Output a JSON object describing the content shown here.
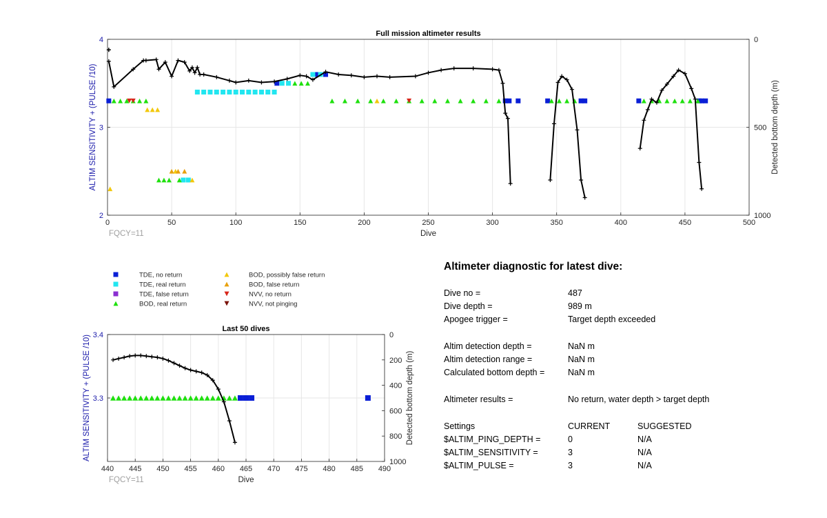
{
  "colors": {
    "tde_no_return": "#0a1fd6",
    "tde_real_return": "#22e6f0",
    "tde_false_return": "#8b2fd1",
    "bod_real_return": "#1fe00e",
    "bod_possibly_false": "#f2c80c",
    "bod_false": "#e8a10e",
    "nvv_no_return": "#d8261a",
    "nvv_not_pinging": "#7a1208",
    "depth_line": "#000000",
    "axis_left": "#1a1aaa",
    "fqcy": "#a0a0a0"
  },
  "legend": [
    {
      "label": "TDE, no return",
      "marker": "square",
      "color": "#0a1fd6"
    },
    {
      "label": "TDE, real return",
      "marker": "square",
      "color": "#22e6f0"
    },
    {
      "label": "TDE, false return",
      "marker": "square",
      "color": "#8b2fd1"
    },
    {
      "label": "BOD, real return",
      "marker": "triangle-up",
      "color": "#1fe00e"
    },
    {
      "label": "BOD, possibly false return",
      "marker": "triangle-up",
      "color": "#f2c80c"
    },
    {
      "label": "BOD, false return",
      "marker": "triangle-up",
      "color": "#e8a10e"
    },
    {
      "label": "NVV, no return",
      "marker": "triangle-down",
      "color": "#d8261a"
    },
    {
      "label": "NVV, not pinging",
      "marker": "triangle-down",
      "color": "#7a1208"
    }
  ],
  "diagnostic": {
    "title": "Altimeter diagnostic for latest dive:",
    "rows": [
      {
        "label": "Dive no =",
        "value": "487"
      },
      {
        "label": "Dive depth =",
        "value": "989 m"
      },
      {
        "label": "Apogee trigger =",
        "value": "Target depth exceeded"
      },
      {
        "label": "Altim detection depth =",
        "value": "NaN m"
      },
      {
        "label": "Altim detection range =",
        "value": "NaN m"
      },
      {
        "label": "Calculated bottom depth =",
        "value": "NaN m"
      },
      {
        "label": "Altimeter results =",
        "value": "No return, water depth > target depth"
      }
    ],
    "settings_header": {
      "label": "Settings",
      "current": "CURRENT",
      "suggested": "SUGGESTED"
    },
    "settings": [
      {
        "label": "$ALTIM_PING_DEPTH =",
        "current": "0",
        "suggested": "N/A"
      },
      {
        "label": "$ALTIM_SENSITIVITY =",
        "current": "3",
        "suggested": "N/A"
      },
      {
        "label": "$ALTIM_PULSE =",
        "current": "3",
        "suggested": "N/A"
      }
    ]
  },
  "chart_data": [
    {
      "type": "scatter",
      "title": "Full mission altimeter results",
      "xlabel": "Dive",
      "ylabel": "ALTIM SENSITIVITY + (PULSE /10)",
      "y2label": "Detected bottom depth (m)",
      "xlim": [
        0,
        500
      ],
      "ylim": [
        2,
        4
      ],
      "y2lim": [
        0,
        1000
      ],
      "y2_reversed": true,
      "xticks": [
        0,
        50,
        100,
        150,
        200,
        250,
        300,
        350,
        400,
        450,
        500
      ],
      "yticks": [
        2,
        3,
        4
      ],
      "y2ticks": [
        0,
        500,
        1000
      ],
      "grid": true,
      "annotation": "FQCY=11",
      "markers": {
        "tde_no_return": [
          [
            1,
            3.3
          ],
          [
            132,
            3.5
          ],
          [
            163,
            3.6
          ],
          [
            170,
            3.6
          ],
          [
            310,
            3.3
          ],
          [
            313,
            3.3
          ],
          [
            320,
            3.3
          ],
          [
            343,
            3.3
          ],
          [
            369,
            3.3
          ],
          [
            372,
            3.3
          ],
          [
            414,
            3.3
          ],
          [
            461,
            3.3
          ],
          [
            463,
            3.3
          ],
          [
            466,
            3.3
          ]
        ],
        "tde_real_return": [
          [
            70,
            3.4
          ],
          [
            75,
            3.4
          ],
          [
            80,
            3.4
          ],
          [
            85,
            3.4
          ],
          [
            90,
            3.4
          ],
          [
            95,
            3.4
          ],
          [
            100,
            3.4
          ],
          [
            105,
            3.4
          ],
          [
            110,
            3.4
          ],
          [
            115,
            3.4
          ],
          [
            120,
            3.4
          ],
          [
            125,
            3.4
          ],
          [
            130,
            3.4
          ],
          [
            136,
            3.5
          ],
          [
            141,
            3.5
          ],
          [
            160,
            3.6
          ],
          [
            166,
            3.6
          ],
          [
            59,
            2.4
          ],
          [
            63,
            2.4
          ]
        ],
        "bod_real_return": [
          [
            5,
            3.3
          ],
          [
            10,
            3.3
          ],
          [
            15,
            3.3
          ],
          [
            20,
            3.3
          ],
          [
            25,
            3.3
          ],
          [
            30,
            3.3
          ],
          [
            40,
            2.4
          ],
          [
            44,
            2.4
          ],
          [
            48,
            2.4
          ],
          [
            56,
            2.4
          ],
          [
            146,
            3.5
          ],
          [
            151,
            3.5
          ],
          [
            156,
            3.5
          ],
          [
            175,
            3.3
          ],
          [
            185,
            3.3
          ],
          [
            195,
            3.3
          ],
          [
            205,
            3.3
          ],
          [
            215,
            3.3
          ],
          [
            225,
            3.3
          ],
          [
            235,
            3.3
          ],
          [
            245,
            3.3
          ],
          [
            255,
            3.3
          ],
          [
            265,
            3.3
          ],
          [
            275,
            3.3
          ],
          [
            285,
            3.3
          ],
          [
            295,
            3.3
          ],
          [
            305,
            3.3
          ],
          [
            346,
            3.3
          ],
          [
            352,
            3.3
          ],
          [
            358,
            3.3
          ],
          [
            364,
            3.3
          ],
          [
            418,
            3.3
          ],
          [
            424,
            3.3
          ],
          [
            430,
            3.3
          ],
          [
            436,
            3.3
          ],
          [
            442,
            3.3
          ],
          [
            448,
            3.3
          ],
          [
            454,
            3.3
          ],
          [
            460,
            3.3
          ]
        ],
        "bod_possibly_false": [
          [
            2,
            2.3
          ],
          [
            31,
            3.2
          ],
          [
            35,
            3.2
          ],
          [
            39,
            3.2
          ],
          [
            53,
            2.5
          ],
          [
            66,
            2.4
          ],
          [
            210,
            3.3
          ]
        ],
        "bod_false": [
          [
            50,
            2.5
          ],
          [
            55,
            2.5
          ],
          [
            60,
            2.5
          ]
        ],
        "nvv_no_return": [
          [
            17,
            3.3
          ],
          [
            20,
            3.3
          ],
          [
            235,
            3.3
          ]
        ],
        "nvv_not_pinging": []
      },
      "depth_segments": [
        [
          [
            1,
            125
          ],
          [
            5,
            270
          ],
          [
            20,
            170
          ],
          [
            28,
            120
          ],
          [
            30,
            120
          ],
          [
            38,
            115
          ],
          [
            40,
            170
          ],
          [
            45,
            130
          ],
          [
            50,
            210
          ],
          [
            55,
            120
          ],
          [
            60,
            130
          ],
          [
            64,
            180
          ],
          [
            66,
            160
          ],
          [
            68,
            190
          ],
          [
            70,
            160
          ],
          [
            72,
            200
          ],
          [
            75,
            200
          ],
          [
            85,
            215
          ],
          [
            95,
            235
          ],
          [
            100,
            245
          ],
          [
            110,
            235
          ],
          [
            120,
            245
          ],
          [
            130,
            240
          ],
          [
            140,
            225
          ],
          [
            150,
            205
          ],
          [
            155,
            210
          ],
          [
            160,
            230
          ],
          [
            170,
            185
          ],
          [
            180,
            200
          ],
          [
            190,
            205
          ],
          [
            200,
            215
          ],
          [
            210,
            210
          ],
          [
            220,
            215
          ],
          [
            240,
            210
          ],
          [
            250,
            190
          ],
          [
            260,
            175
          ],
          [
            270,
            165
          ],
          [
            285,
            165
          ],
          [
            300,
            170
          ],
          [
            305,
            175
          ],
          [
            308,
            250
          ],
          [
            310,
            420
          ],
          [
            312,
            450
          ],
          [
            314,
            820
          ]
        ],
        [
          [
            345,
            800
          ],
          [
            348,
            480
          ],
          [
            351,
            245
          ],
          [
            354,
            210
          ],
          [
            358,
            230
          ],
          [
            362,
            285
          ],
          [
            366,
            515
          ],
          [
            369,
            800
          ],
          [
            372,
            900
          ]
        ],
        [
          [
            415,
            620
          ],
          [
            418,
            460
          ],
          [
            421,
            400
          ],
          [
            424,
            340
          ],
          [
            428,
            360
          ],
          [
            432,
            290
          ],
          [
            436,
            255
          ],
          [
            441,
            210
          ],
          [
            445,
            175
          ],
          [
            450,
            195
          ],
          [
            455,
            280
          ],
          [
            458,
            340
          ],
          [
            461,
            700
          ],
          [
            463,
            850
          ]
        ]
      ],
      "isolated_depth_points": [
        [
          1,
          60
        ]
      ]
    },
    {
      "type": "scatter",
      "title": "Last 50 dives",
      "xlabel": "Dive",
      "ylabel": "ALTIM SENSITIVITY + (PULSE /10)",
      "y2label": "Detected bottom depth (m)",
      "xlim": [
        440,
        490
      ],
      "ylim": [
        3.2,
        3.4
      ],
      "y2lim": [
        0,
        1000
      ],
      "y2_reversed": true,
      "xticks": [
        440,
        445,
        450,
        455,
        460,
        465,
        470,
        475,
        480,
        485,
        490
      ],
      "yticks": [
        3.3,
        3.4
      ],
      "y2ticks": [
        0,
        200,
        400,
        600,
        800,
        1000
      ],
      "grid": true,
      "annotation": "FQCY=11",
      "markers": {
        "bod_real_return": [
          [
            441,
            3.3
          ],
          [
            442,
            3.3
          ],
          [
            443,
            3.3
          ],
          [
            444,
            3.3
          ],
          [
            445,
            3.3
          ],
          [
            446,
            3.3
          ],
          [
            447,
            3.3
          ],
          [
            448,
            3.3
          ],
          [
            449,
            3.3
          ],
          [
            450,
            3.3
          ],
          [
            451,
            3.3
          ],
          [
            452,
            3.3
          ],
          [
            453,
            3.3
          ],
          [
            454,
            3.3
          ],
          [
            455,
            3.3
          ],
          [
            456,
            3.3
          ],
          [
            457,
            3.3
          ],
          [
            458,
            3.3
          ],
          [
            459,
            3.3
          ],
          [
            460,
            3.3
          ],
          [
            461,
            3.3
          ],
          [
            462,
            3.3
          ],
          [
            463,
            3.3
          ]
        ],
        "tde_no_return": [
          [
            464,
            3.3
          ],
          [
            465,
            3.3
          ],
          [
            466,
            3.3
          ],
          [
            487,
            3.3
          ]
        ]
      },
      "depth_segment": [
        [
          441,
          200
        ],
        [
          442,
          190
        ],
        [
          443,
          180
        ],
        [
          444,
          170
        ],
        [
          445,
          165
        ],
        [
          446,
          165
        ],
        [
          447,
          170
        ],
        [
          448,
          175
        ],
        [
          449,
          180
        ],
        [
          450,
          190
        ],
        [
          451,
          205
        ],
        [
          452,
          225
        ],
        [
          453,
          245
        ],
        [
          454,
          265
        ],
        [
          455,
          280
        ],
        [
          456,
          290
        ],
        [
          457,
          300
        ],
        [
          458,
          320
        ],
        [
          459,
          360
        ],
        [
          460,
          430
        ],
        [
          461,
          530
        ],
        [
          462,
          680
        ],
        [
          463,
          850
        ]
      ]
    }
  ]
}
